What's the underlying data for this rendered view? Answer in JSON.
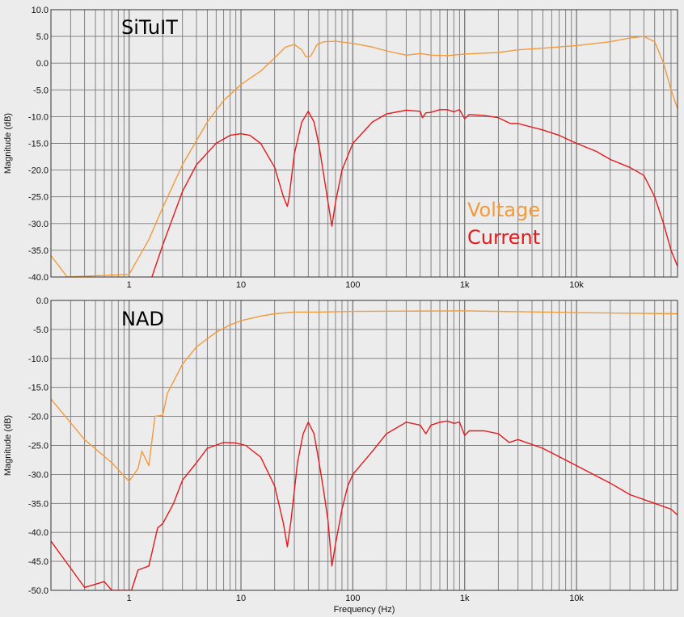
{
  "colors": {
    "voltage": "#f39a3b",
    "current": "#e31a1c",
    "plot_bg": "#ececec",
    "grid": "#777777"
  },
  "chart_data": [
    {
      "type": "line",
      "title": "SiTuIT",
      "xlabel": "",
      "ylabel": "Magnitude (dB)",
      "xscale": "log",
      "xlim": [
        0.2,
        80000
      ],
      "ylim": [
        -40,
        10
      ],
      "grid": true,
      "xticks": [
        1,
        10,
        100,
        1000,
        10000
      ],
      "xticklabels": [
        "1",
        "10",
        "100",
        "1k",
        "10k"
      ],
      "yticks": [
        -40,
        -35,
        -30,
        -25,
        -20,
        -15,
        -10,
        -5,
        0,
        5,
        10
      ],
      "yticklabels": [
        "-40.0",
        "-35.0",
        "-30.0",
        "-25.0",
        "-20.0",
        "-15.0",
        "-10.0",
        "-5.0",
        "0.0",
        "5.0",
        "10.0"
      ],
      "legend": {
        "position": "right",
        "entries": [
          "Voltage",
          "Current"
        ]
      },
      "series": [
        {
          "name": "Voltage",
          "color": "#f39a3b",
          "points": [
            [
              0.2,
              -36
            ],
            [
              0.28,
              -40
            ],
            [
              1,
              -39.5
            ],
            [
              1.5,
              -33
            ],
            [
              2,
              -27
            ],
            [
              3,
              -19
            ],
            [
              5,
              -11
            ],
            [
              7,
              -7
            ],
            [
              10,
              -4
            ],
            [
              15,
              -1.5
            ],
            [
              20,
              1
            ],
            [
              25,
              3
            ],
            [
              30,
              3.5
            ],
            [
              35,
              2.5
            ],
            [
              38,
              1.2
            ],
            [
              42,
              1.3
            ],
            [
              48,
              3.5
            ],
            [
              55,
              4
            ],
            [
              70,
              4.1
            ],
            [
              100,
              3.7
            ],
            [
              150,
              3
            ],
            [
              200,
              2.3
            ],
            [
              300,
              1.5
            ],
            [
              400,
              1.8
            ],
            [
              500,
              1.5
            ],
            [
              700,
              1.4
            ],
            [
              1000,
              1.7
            ],
            [
              2000,
              2
            ],
            [
              3000,
              2.5
            ],
            [
              5000,
              2.8
            ],
            [
              10000,
              3.3
            ],
            [
              20000,
              4
            ],
            [
              30000,
              4.7
            ],
            [
              40000,
              5
            ],
            [
              50000,
              4
            ],
            [
              60000,
              0
            ],
            [
              70000,
              -5
            ],
            [
              80000,
              -8.5
            ]
          ]
        },
        {
          "name": "Current",
          "color": "#e31a1c",
          "points": [
            [
              1.6,
              -40
            ],
            [
              2,
              -34
            ],
            [
              3,
              -24
            ],
            [
              4,
              -19
            ],
            [
              6,
              -15
            ],
            [
              8,
              -13.5
            ],
            [
              10,
              -13.2
            ],
            [
              12,
              -13.5
            ],
            [
              15,
              -15
            ],
            [
              20,
              -19.5
            ],
            [
              24,
              -25
            ],
            [
              26,
              -26.8
            ],
            [
              27,
              -25
            ],
            [
              30,
              -17
            ],
            [
              35,
              -11
            ],
            [
              40,
              -9
            ],
            [
              45,
              -11
            ],
            [
              50,
              -15.5
            ],
            [
              55,
              -21
            ],
            [
              60,
              -26
            ],
            [
              65,
              -30.5
            ],
            [
              70,
              -26
            ],
            [
              80,
              -20
            ],
            [
              100,
              -15
            ],
            [
              150,
              -11
            ],
            [
              200,
              -9.5
            ],
            [
              300,
              -8.8
            ],
            [
              400,
              -9
            ],
            [
              420,
              -10.2
            ],
            [
              450,
              -9.3
            ],
            [
              500,
              -9.2
            ],
            [
              600,
              -8.7
            ],
            [
              700,
              -8.7
            ],
            [
              800,
              -9.1
            ],
            [
              900,
              -8.7
            ],
            [
              1000,
              -10.4
            ],
            [
              1100,
              -9.6
            ],
            [
              1500,
              -9.8
            ],
            [
              2000,
              -10.2
            ],
            [
              2500,
              -11.2
            ],
            [
              2600,
              -11.3
            ],
            [
              3000,
              -11.3
            ],
            [
              5000,
              -12.5
            ],
            [
              7000,
              -13.5
            ],
            [
              10000,
              -15
            ],
            [
              15000,
              -16.5
            ],
            [
              20000,
              -18
            ],
            [
              30000,
              -19.5
            ],
            [
              40000,
              -21
            ],
            [
              50000,
              -25
            ],
            [
              60000,
              -30
            ],
            [
              70000,
              -35
            ],
            [
              80000,
              -38
            ]
          ]
        }
      ]
    },
    {
      "type": "line",
      "title": "NAD",
      "xlabel": "Frequency (Hz)",
      "ylabel": "Magnitude (dB)",
      "xscale": "log",
      "xlim": [
        0.2,
        80000
      ],
      "ylim": [
        -50,
        0
      ],
      "grid": true,
      "xticks": [
        1,
        10,
        100,
        1000,
        10000
      ],
      "xticklabels": [
        "1",
        "10",
        "100",
        "1k",
        "10k"
      ],
      "yticks": [
        -50,
        -45,
        -40,
        -35,
        -30,
        -25,
        -20,
        -15,
        -10,
        -5,
        0
      ],
      "yticklabels": [
        "-50.0",
        "-45.0",
        "-40.0",
        "-35.0",
        "-30.0",
        "-25.0",
        "-20.0",
        "-15.0",
        "-10.0",
        "-5.0",
        "0.0"
      ],
      "series": [
        {
          "name": "Voltage",
          "color": "#f39a3b",
          "points": [
            [
              0.2,
              -17
            ],
            [
              0.4,
              -24
            ],
            [
              0.7,
              -28
            ],
            [
              1,
              -31.2
            ],
            [
              1.2,
              -29
            ],
            [
              1.3,
              -26
            ],
            [
              1.5,
              -28.5
            ],
            [
              1.7,
              -20
            ],
            [
              2,
              -19.8
            ],
            [
              2.2,
              -16
            ],
            [
              3,
              -11
            ],
            [
              4,
              -8
            ],
            [
              6,
              -5.5
            ],
            [
              8,
              -4.2
            ],
            [
              10,
              -3.5
            ],
            [
              15,
              -2.7
            ],
            [
              20,
              -2.3
            ],
            [
              30,
              -2
            ],
            [
              50,
              -2
            ],
            [
              100,
              -1.9
            ],
            [
              1000,
              -1.8
            ],
            [
              10000,
              -2.1
            ],
            [
              80000,
              -2.3
            ]
          ]
        },
        {
          "name": "Current",
          "color": "#e31a1c",
          "points": [
            [
              0.2,
              -41.5
            ],
            [
              0.4,
              -49.5
            ],
            [
              0.6,
              -48.5
            ],
            [
              0.7,
              -50
            ],
            [
              1.05,
              -50
            ],
            [
              1.2,
              -46.5
            ],
            [
              1.5,
              -45.8
            ],
            [
              1.8,
              -39.2
            ],
            [
              2,
              -38.5
            ],
            [
              2.5,
              -35
            ],
            [
              3,
              -31
            ],
            [
              4,
              -28
            ],
            [
              5,
              -25.5
            ],
            [
              7,
              -24.5
            ],
            [
              9,
              -24.6
            ],
            [
              11,
              -25
            ],
            [
              15,
              -27
            ],
            [
              20,
              -32
            ],
            [
              24,
              -38.5
            ],
            [
              26,
              -42.5
            ],
            [
              28,
              -38
            ],
            [
              32,
              -28
            ],
            [
              36,
              -23
            ],
            [
              40,
              -21
            ],
            [
              45,
              -23
            ],
            [
              50,
              -28
            ],
            [
              55,
              -33
            ],
            [
              60,
              -38
            ],
            [
              65,
              -45.8
            ],
            [
              70,
              -42
            ],
            [
              80,
              -36
            ],
            [
              90,
              -32
            ],
            [
              100,
              -30
            ],
            [
              150,
              -26
            ],
            [
              200,
              -23
            ],
            [
              300,
              -21
            ],
            [
              400,
              -21.5
            ],
            [
              450,
              -23
            ],
            [
              500,
              -21.5
            ],
            [
              600,
              -21
            ],
            [
              700,
              -20.8
            ],
            [
              800,
              -21.2
            ],
            [
              900,
              -21
            ],
            [
              1000,
              -23.3
            ],
            [
              1100,
              -22.5
            ],
            [
              1500,
              -22.5
            ],
            [
              2000,
              -23
            ],
            [
              2500,
              -24.5
            ],
            [
              3000,
              -24
            ],
            [
              5000,
              -25.5
            ],
            [
              10000,
              -28.5
            ],
            [
              20000,
              -31.5
            ],
            [
              30000,
              -33.5
            ],
            [
              50000,
              -35
            ],
            [
              70000,
              -36
            ],
            [
              80000,
              -37
            ]
          ]
        }
      ]
    }
  ]
}
